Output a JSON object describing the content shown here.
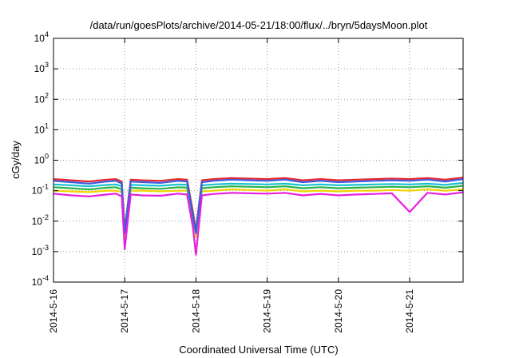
{
  "chart_data": {
    "type": "line",
    "title": "/data/run/goesPlots/archive/2014-05-21/18:00/flux/../bryn/5daysMoon.plot",
    "xlabel": "Coordinated Universal Time (UTC)",
    "ylabel": "cGy/day",
    "yscale": "log",
    "ylim": [
      0.0001,
      10000
    ],
    "y_ticks": [
      {
        "value": 0.0001,
        "base": "10",
        "exp": "-4"
      },
      {
        "value": 0.001,
        "base": "10",
        "exp": "-3"
      },
      {
        "value": 0.01,
        "base": "10",
        "exp": "-2"
      },
      {
        "value": 0.1,
        "base": "10",
        "exp": "-1"
      },
      {
        "value": 1,
        "base": "10",
        "exp": "0"
      },
      {
        "value": 10,
        "base": "10",
        "exp": "1"
      },
      {
        "value": 100,
        "base": "10",
        "exp": "2"
      },
      {
        "value": 1000,
        "base": "10",
        "exp": "3"
      },
      {
        "value": 10000,
        "base": "10",
        "exp": "4"
      }
    ],
    "xlim": [
      "2014-05-16T00:00",
      "2014-05-21T18:00"
    ],
    "x_ticks": [
      {
        "value": "2014-05-16T00:00",
        "label": "2014-5-16"
      },
      {
        "value": "2014-05-17T00:00",
        "label": "2014-5-17"
      },
      {
        "value": "2014-05-18T00:00",
        "label": "2014-5-18"
      },
      {
        "value": "2014-05-19T00:00",
        "label": "2014-5-19"
      },
      {
        "value": "2014-05-20T00:00",
        "label": "2014-5-20"
      },
      {
        "value": "2014-05-21T00:00",
        "label": "2014-5-21"
      }
    ],
    "grid": true,
    "legend": "none",
    "series": [
      {
        "color": "#e8262b",
        "x": [
          "2014-05-16T00:00",
          "2014-05-16T06:00",
          "2014-05-16T12:00",
          "2014-05-16T18:00",
          "2014-05-16T21:00",
          "2014-05-16T23:00",
          "2014-05-17T00:00",
          "2014-05-17T02:00",
          "2014-05-17T06:00",
          "2014-05-17T12:00",
          "2014-05-17T18:00",
          "2014-05-17T21:00",
          "2014-05-17T23:00",
          "2014-05-18T00:00",
          "2014-05-18T02:00",
          "2014-05-18T06:00",
          "2014-05-18T12:00",
          "2014-05-18T18:00",
          "2014-05-19T00:00",
          "2014-05-19T06:00",
          "2014-05-19T12:00",
          "2014-05-19T18:00",
          "2014-05-20T00:00",
          "2014-05-20T06:00",
          "2014-05-20T12:00",
          "2014-05-20T18:00",
          "2014-05-21T00:00",
          "2014-05-21T06:00",
          "2014-05-21T12:00",
          "2014-05-21T18:00"
        ],
        "y": [
          0.24,
          0.22,
          0.2,
          0.23,
          0.24,
          0.2,
          0.005,
          0.23,
          0.22,
          0.21,
          0.24,
          0.23,
          0.02,
          0.005,
          0.22,
          0.24,
          0.26,
          0.25,
          0.24,
          0.26,
          0.22,
          0.24,
          0.22,
          0.23,
          0.24,
          0.25,
          0.24,
          0.26,
          0.23,
          0.27
        ]
      },
      {
        "color": "#f0d400",
        "x": [
          "2014-05-16T00:00",
          "2014-05-16T06:00",
          "2014-05-16T12:00",
          "2014-05-16T18:00",
          "2014-05-16T21:00",
          "2014-05-16T23:00",
          "2014-05-17T00:00",
          "2014-05-17T02:00",
          "2014-05-17T06:00",
          "2014-05-17T12:00",
          "2014-05-17T18:00",
          "2014-05-17T21:00",
          "2014-05-17T23:00",
          "2014-05-18T00:00",
          "2014-05-18T02:00",
          "2014-05-18T06:00",
          "2014-05-18T12:00",
          "2014-05-18T18:00",
          "2014-05-19T00:00",
          "2014-05-19T06:00",
          "2014-05-19T12:00",
          "2014-05-19T18:00",
          "2014-05-20T00:00",
          "2014-05-20T06:00",
          "2014-05-20T12:00",
          "2014-05-20T18:00",
          "2014-05-21T00:00",
          "2014-05-21T06:00",
          "2014-05-21T12:00",
          "2014-05-21T18:00"
        ],
        "y": [
          0.1,
          0.095,
          0.09,
          0.1,
          0.1,
          0.09,
          0.003,
          0.1,
          0.1,
          0.095,
          0.1,
          0.1,
          0.01,
          0.003,
          0.095,
          0.1,
          0.11,
          0.105,
          0.1,
          0.11,
          0.095,
          0.1,
          0.095,
          0.1,
          0.1,
          0.105,
          0.1,
          0.11,
          0.1,
          0.11
        ]
      },
      {
        "color": "#2ab24a",
        "x": [
          "2014-05-16T00:00",
          "2014-05-16T06:00",
          "2014-05-16T12:00",
          "2014-05-16T18:00",
          "2014-05-16T21:00",
          "2014-05-16T23:00",
          "2014-05-17T00:00",
          "2014-05-17T02:00",
          "2014-05-17T06:00",
          "2014-05-17T12:00",
          "2014-05-17T18:00",
          "2014-05-17T21:00",
          "2014-05-17T23:00",
          "2014-05-18T00:00",
          "2014-05-18T02:00",
          "2014-05-18T06:00",
          "2014-05-18T12:00",
          "2014-05-18T18:00",
          "2014-05-19T00:00",
          "2014-05-19T06:00",
          "2014-05-19T12:00",
          "2014-05-19T18:00",
          "2014-05-20T00:00",
          "2014-05-20T06:00",
          "2014-05-20T12:00",
          "2014-05-20T18:00",
          "2014-05-21T00:00",
          "2014-05-21T06:00",
          "2014-05-21T12:00",
          "2014-05-21T18:00"
        ],
        "y": [
          0.13,
          0.12,
          0.11,
          0.125,
          0.13,
          0.11,
          0.004,
          0.125,
          0.12,
          0.115,
          0.13,
          0.125,
          0.012,
          0.004,
          0.12,
          0.13,
          0.14,
          0.135,
          0.13,
          0.14,
          0.12,
          0.13,
          0.12,
          0.125,
          0.13,
          0.135,
          0.13,
          0.14,
          0.125,
          0.145
        ]
      },
      {
        "color": "#19c2d0",
        "x": [
          "2014-05-16T00:00",
          "2014-05-16T06:00",
          "2014-05-16T12:00",
          "2014-05-16T18:00",
          "2014-05-16T21:00",
          "2014-05-16T23:00",
          "2014-05-17T00:00",
          "2014-05-17T02:00",
          "2014-05-17T06:00",
          "2014-05-17T12:00",
          "2014-05-17T18:00",
          "2014-05-17T21:00",
          "2014-05-17T23:00",
          "2014-05-18T00:00",
          "2014-05-18T02:00",
          "2014-05-18T06:00",
          "2014-05-18T12:00",
          "2014-05-18T18:00",
          "2014-05-19T00:00",
          "2014-05-19T06:00",
          "2014-05-19T12:00",
          "2014-05-19T18:00",
          "2014-05-20T00:00",
          "2014-05-20T06:00",
          "2014-05-20T12:00",
          "2014-05-20T18:00",
          "2014-05-21T00:00",
          "2014-05-21T06:00",
          "2014-05-21T12:00",
          "2014-05-21T18:00"
        ],
        "y": [
          0.16,
          0.15,
          0.14,
          0.155,
          0.16,
          0.14,
          0.004,
          0.155,
          0.15,
          0.145,
          0.16,
          0.155,
          0.015,
          0.004,
          0.15,
          0.16,
          0.17,
          0.165,
          0.16,
          0.17,
          0.15,
          0.16,
          0.15,
          0.155,
          0.16,
          0.165,
          0.16,
          0.17,
          0.155,
          0.18
        ]
      },
      {
        "color": "#3a5de6",
        "x": [
          "2014-05-16T00:00",
          "2014-05-16T06:00",
          "2014-05-16T12:00",
          "2014-05-16T18:00",
          "2014-05-16T21:00",
          "2014-05-16T23:00",
          "2014-05-17T00:00",
          "2014-05-17T02:00",
          "2014-05-17T06:00",
          "2014-05-17T12:00",
          "2014-05-17T18:00",
          "2014-05-17T21:00",
          "2014-05-17T23:00",
          "2014-05-18T00:00",
          "2014-05-18T02:00",
          "2014-05-18T06:00",
          "2014-05-18T12:00",
          "2014-05-18T18:00",
          "2014-05-19T00:00",
          "2014-05-19T06:00",
          "2014-05-19T12:00",
          "2014-05-19T18:00",
          "2014-05-20T00:00",
          "2014-05-20T06:00",
          "2014-05-20T12:00",
          "2014-05-20T18:00",
          "2014-05-21T00:00",
          "2014-05-21T06:00",
          "2014-05-21T12:00",
          "2014-05-21T18:00"
        ],
        "y": [
          0.21,
          0.19,
          0.17,
          0.2,
          0.21,
          0.17,
          0.004,
          0.2,
          0.19,
          0.18,
          0.21,
          0.2,
          0.015,
          0.004,
          0.19,
          0.21,
          0.23,
          0.22,
          0.21,
          0.23,
          0.19,
          0.21,
          0.19,
          0.2,
          0.21,
          0.22,
          0.21,
          0.23,
          0.2,
          0.24
        ]
      },
      {
        "color": "#e81ee0",
        "x": [
          "2014-05-16T00:00",
          "2014-05-16T06:00",
          "2014-05-16T12:00",
          "2014-05-16T18:00",
          "2014-05-16T21:00",
          "2014-05-16T23:00",
          "2014-05-17T00:00",
          "2014-05-17T02:00",
          "2014-05-17T06:00",
          "2014-05-17T12:00",
          "2014-05-17T18:00",
          "2014-05-17T21:00",
          "2014-05-17T23:00",
          "2014-05-18T00:00",
          "2014-05-18T02:00",
          "2014-05-18T06:00",
          "2014-05-18T12:00",
          "2014-05-18T18:00",
          "2014-05-19T00:00",
          "2014-05-19T06:00",
          "2014-05-19T12:00",
          "2014-05-19T18:00",
          "2014-05-20T00:00",
          "2014-05-20T06:00",
          "2014-05-20T12:00",
          "2014-05-20T18:00",
          "2014-05-21T00:00",
          "2014-05-21T06:00",
          "2014-05-21T12:00",
          "2014-05-21T18:00"
        ],
        "y": [
          0.08,
          0.07,
          0.065,
          0.075,
          0.08,
          0.065,
          0.0012,
          0.075,
          0.07,
          0.068,
          0.08,
          0.075,
          0.006,
          0.0008,
          0.07,
          0.078,
          0.085,
          0.082,
          0.08,
          0.085,
          0.07,
          0.078,
          0.07,
          0.075,
          0.078,
          0.082,
          0.02,
          0.085,
          0.075,
          0.088
        ]
      }
    ]
  }
}
